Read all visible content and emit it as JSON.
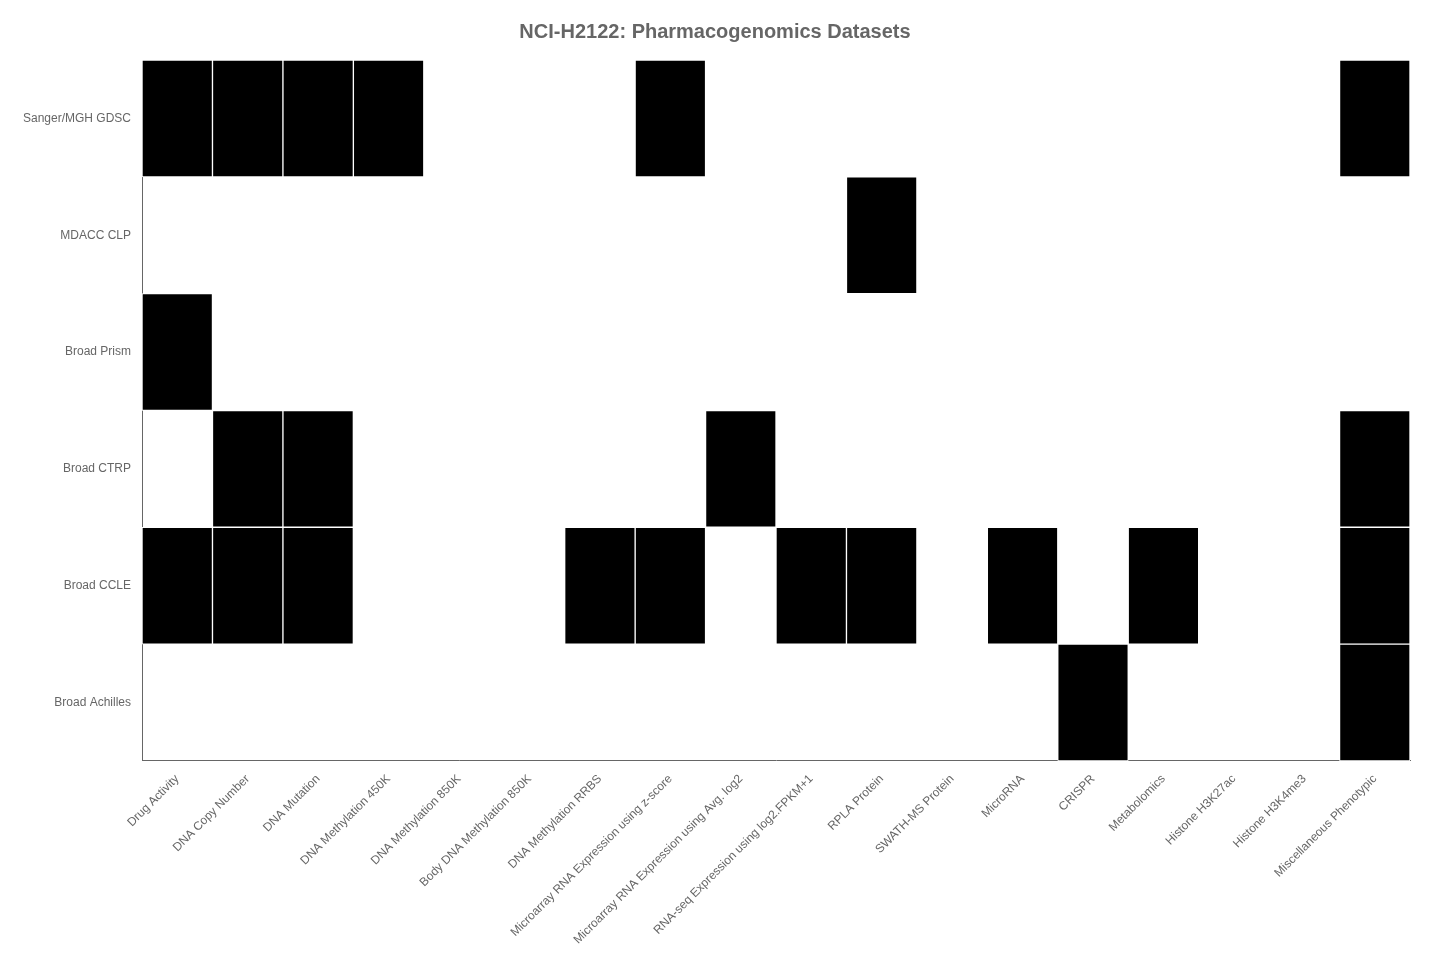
{
  "chart_data": {
    "type": "heatmap",
    "title": "NCI-H2122: Pharmacogenomics Datasets",
    "rows": [
      "Sanger/MGH GDSC",
      "MDACC CLP",
      "Broad Prism",
      "Broad CTRP",
      "Broad CCLE",
      "Broad Achilles"
    ],
    "columns": [
      "Drug Activity",
      "DNA Copy Number",
      "DNA Mutation",
      "DNA Methylation 450K",
      "DNA Methylation 850K",
      "Body DNA Methylation 850K",
      "DNA Methylation RRBS",
      "Microarray RNA Expression using z-score",
      "Microarray RNA Expression using Avg. log2",
      "RNA-seq Expression using log2.FPKM+1",
      "RPLA Protein",
      "SWATH-MS Protein",
      "MicroRNA",
      "CRISPR",
      "Metabolomics",
      "Histone H3K27ac",
      "Histone H3K4me3",
      "Miscellaneous Phenotypic"
    ],
    "filled_cells": [
      [
        0,
        0
      ],
      [
        0,
        1
      ],
      [
        0,
        2
      ],
      [
        0,
        3
      ],
      [
        0,
        7
      ],
      [
        0,
        17
      ],
      [
        1,
        10
      ],
      [
        2,
        0
      ],
      [
        3,
        1
      ],
      [
        3,
        2
      ],
      [
        3,
        8
      ],
      [
        3,
        17
      ],
      [
        4,
        0
      ],
      [
        4,
        1
      ],
      [
        4,
        2
      ],
      [
        4,
        6
      ],
      [
        4,
        7
      ],
      [
        4,
        9
      ],
      [
        4,
        10
      ],
      [
        4,
        12
      ],
      [
        4,
        14
      ],
      [
        4,
        17
      ],
      [
        5,
        13
      ],
      [
        5,
        17
      ]
    ],
    "color": "#000000",
    "grid": false
  }
}
